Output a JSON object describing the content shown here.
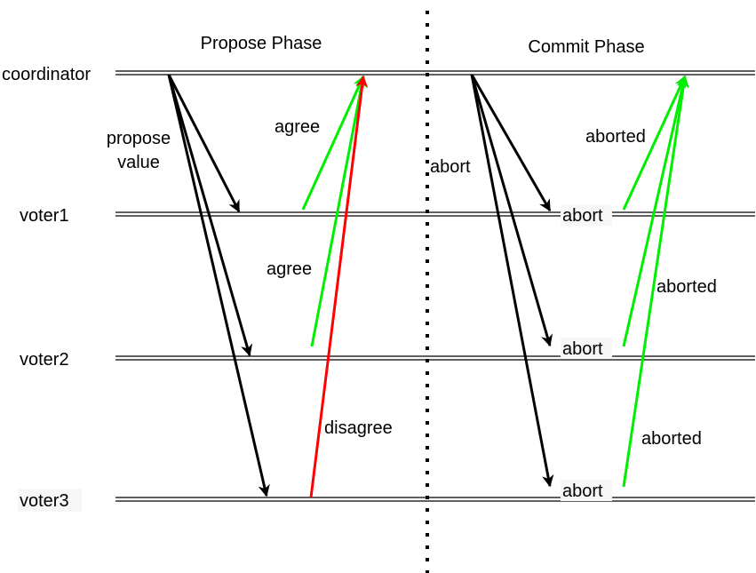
{
  "phases": {
    "propose": "Propose Phase",
    "commit": "Commit Phase"
  },
  "participants": {
    "coordinator": "coordinator",
    "voter1": "voter1",
    "voter2": "voter2",
    "voter3": "voter3"
  },
  "messages": {
    "propose_line1": "propose",
    "propose_line2": "value",
    "agree_1": "agree",
    "agree_2": "agree",
    "disagree": "disagree",
    "abort_header": "abort",
    "abort_v1": "abort",
    "abort_v2": "abort",
    "abort_v3": "abort",
    "aborted_1": "aborted",
    "aborted_2": "aborted",
    "aborted_3": "aborted"
  },
  "colors": {
    "request_arrow": "#000000",
    "agree_arrow": "#00ee00",
    "disagree_arrow": "#ff0000",
    "timeline": "#000000"
  }
}
